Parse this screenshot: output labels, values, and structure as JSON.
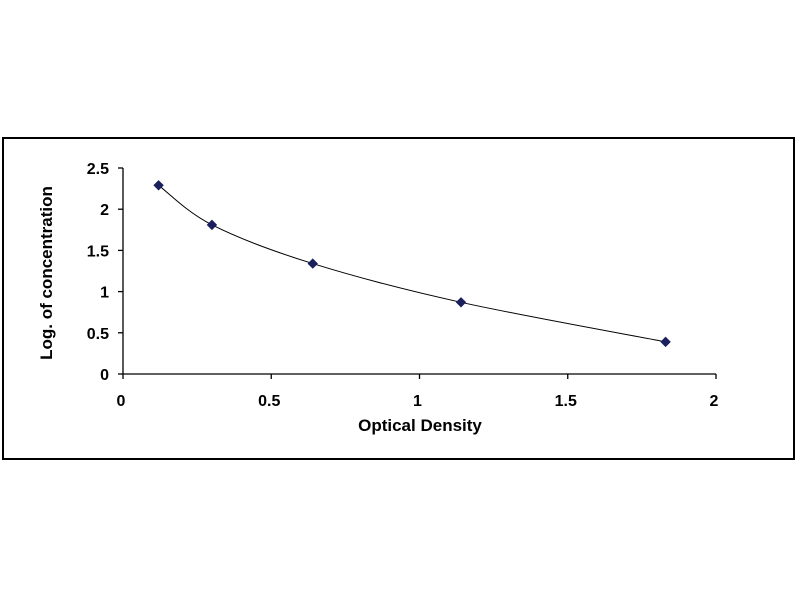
{
  "chart_data": {
    "type": "scatter",
    "title": "",
    "xlabel": "Optical Density",
    "ylabel": "Log. of concentration",
    "xlim": [
      0,
      2
    ],
    "ylim": [
      0,
      2.5
    ],
    "x_ticks": [
      "0",
      "0.5",
      "1",
      "1.5",
      "2"
    ],
    "y_ticks": [
      "0",
      "0.5",
      "1",
      "1.5",
      "2",
      "2.5"
    ],
    "grid": false,
    "legend": "none",
    "marker": "diamond",
    "series": [
      {
        "points": [
          {
            "x": 0.12,
            "y": 2.29
          },
          {
            "x": 0.3,
            "y": 1.81
          },
          {
            "x": 0.64,
            "y": 1.34
          },
          {
            "x": 1.14,
            "y": 0.87
          },
          {
            "x": 1.83,
            "y": 0.39
          }
        ],
        "fit_line": "smooth",
        "color": "#1a1f5e"
      }
    ],
    "colors": {
      "marker": "#1a1f5e",
      "line": "#000000",
      "axis": "#000000"
    }
  }
}
